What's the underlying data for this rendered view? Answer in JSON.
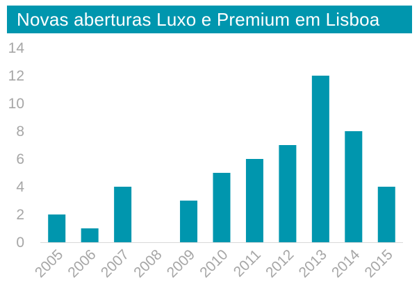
{
  "colors": {
    "accent": "#0096ae",
    "title_text": "#ffffff",
    "tick_text": "#a6a6a6",
    "axis_line": "#d9d9d9",
    "background": "#ffffff"
  },
  "chart_data": {
    "type": "bar",
    "title": "Novas aberturas Luxo e Premium em Lisboa",
    "xlabel": "",
    "ylabel": "",
    "categories": [
      "2005",
      "2006",
      "2007",
      "2008",
      "2009",
      "2010",
      "2011",
      "2012",
      "2013",
      "2014",
      "2015"
    ],
    "values": [
      2,
      1,
      4,
      0,
      3,
      5,
      6,
      7,
      12,
      8,
      4
    ],
    "y_ticks": [
      "0",
      "2",
      "4",
      "6",
      "8",
      "10",
      "12",
      "14"
    ],
    "ylim": [
      0,
      14
    ],
    "grid": false,
    "legend": "none"
  }
}
